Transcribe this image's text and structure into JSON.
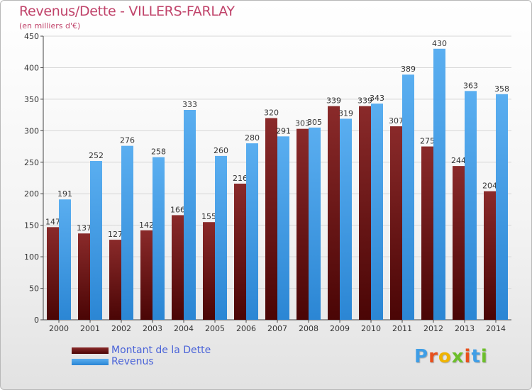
{
  "chart_data": {
    "type": "bar",
    "title": "Revenus/Dette - VILLERS-FARLAY",
    "subtitle": "(en milliers d'€)",
    "categories": [
      "2000",
      "2001",
      "2002",
      "2003",
      "2004",
      "2005",
      "2006",
      "2007",
      "2008",
      "2009",
      "2010",
      "2011",
      "2012",
      "2013",
      "2014"
    ],
    "series": [
      {
        "name": "Montant de la Dette",
        "color": "#7a1c1c",
        "values": [
          147,
          137,
          127,
          142,
          166,
          155,
          216,
          320,
          303,
          339,
          339,
          307,
          275,
          244,
          204
        ]
      },
      {
        "name": "Revenus",
        "color": "#3f9ee6",
        "values": [
          191,
          252,
          276,
          258,
          333,
          260,
          280,
          291,
          305,
          319,
          343,
          389,
          430,
          363,
          358
        ]
      }
    ],
    "ylim": [
      0,
      450
    ],
    "yticks": [
      0,
      50,
      100,
      150,
      200,
      250,
      300,
      350,
      400,
      450
    ],
    "grid": true,
    "legend_position": "bottom-left"
  },
  "logo": {
    "letters": [
      "P",
      "r",
      "o",
      "x",
      "i",
      "t",
      "i"
    ],
    "colors": [
      "#3f9ee6",
      "#e8501c",
      "#f0b400",
      "#6cbf2a",
      "#e8501c",
      "#3f9ee6",
      "#6cbf2a"
    ]
  }
}
